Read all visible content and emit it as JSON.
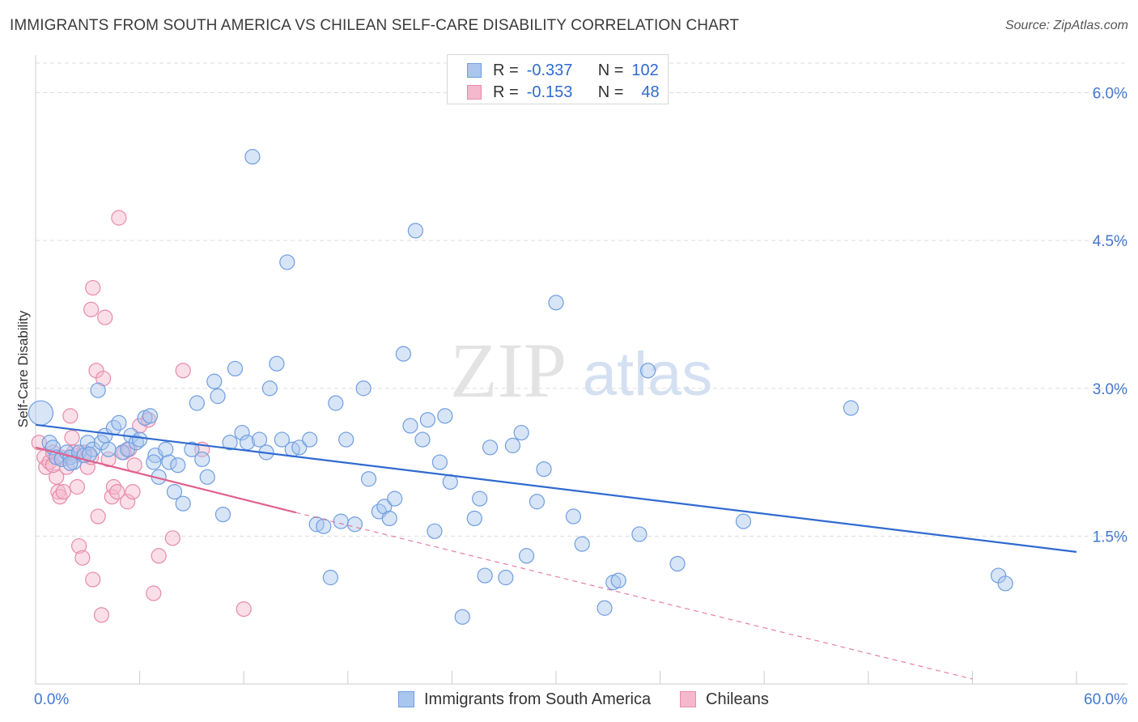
{
  "header": {
    "title": "IMMIGRANTS FROM SOUTH AMERICA VS CHILEAN SELF-CARE DISABILITY CORRELATION CHART",
    "source": "Source: ZipAtlas.com"
  },
  "watermark": {
    "zip": "ZIP",
    "atlas": "atlas"
  },
  "stats_legend": {
    "rows": [
      {
        "r_label": "R =",
        "r_value": "-0.337",
        "n_label": "N =",
        "n_value": "102"
      },
      {
        "r_label": "R =",
        "r_value": "-0.153",
        "n_label": "N =",
        "n_value": "48"
      }
    ]
  },
  "legend": {
    "items": [
      {
        "label": "Immigrants from South America"
      },
      {
        "label": "Chileans"
      }
    ]
  },
  "colors": {
    "blue_fill": "#a9c6ee",
    "blue_stroke": "#6f9ee0",
    "blue_line": "#2f6ad0",
    "pink_fill": "#f5b8cc",
    "pink_stroke": "#e88aa9",
    "pink_line": "#e0608e",
    "grid": "#dddddd",
    "tick_text": "#4477cc"
  },
  "chart_data": {
    "type": "scatter",
    "title": "IMMIGRANTS FROM SOUTH AMERICA VS CHILEAN SELF-CARE DISABILITY CORRELATION CHART",
    "xlabel": "",
    "ylabel": "Self-Care Disability",
    "xlim": [
      0,
      60
    ],
    "ylim": [
      0,
      6.3
    ],
    "x_tick_labels": [
      "0.0%",
      "60.0%"
    ],
    "y_ticks": [
      1.5,
      3.0,
      4.5,
      6.0
    ],
    "y_tick_labels": [
      "1.5%",
      "3.0%",
      "4.5%",
      "6.0%"
    ],
    "grid": true,
    "series": [
      {
        "name": "Immigrants from South America",
        "r": -0.337,
        "n": 102,
        "trend": {
          "x0": 0,
          "y0": 2.63,
          "x1": 60,
          "y1": 1.34
        },
        "points": [
          [
            0.3,
            2.75
          ],
          [
            0.8,
            2.45
          ],
          [
            1.0,
            2.4
          ],
          [
            1.2,
            2.3
          ],
          [
            1.5,
            2.28
          ],
          [
            1.8,
            2.35
          ],
          [
            2.0,
            2.3
          ],
          [
            2.2,
            2.25
          ],
          [
            2.5,
            2.35
          ],
          [
            2.8,
            2.32
          ],
          [
            3.0,
            2.45
          ],
          [
            3.3,
            2.38
          ],
          [
            3.6,
            2.98
          ],
          [
            3.8,
            2.45
          ],
          [
            4.0,
            2.52
          ],
          [
            4.2,
            2.38
          ],
          [
            4.5,
            2.6
          ],
          [
            4.8,
            2.65
          ],
          [
            5.0,
            2.35
          ],
          [
            5.3,
            2.38
          ],
          [
            5.5,
            2.52
          ],
          [
            5.8,
            2.45
          ],
          [
            6.0,
            2.48
          ],
          [
            6.3,
            2.7
          ],
          [
            6.6,
            2.72
          ],
          [
            6.9,
            2.32
          ],
          [
            7.1,
            2.1
          ],
          [
            7.5,
            2.38
          ],
          [
            7.7,
            2.25
          ],
          [
            8.0,
            1.95
          ],
          [
            8.2,
            2.22
          ],
          [
            8.5,
            1.83
          ],
          [
            9.0,
            2.38
          ],
          [
            9.3,
            2.85
          ],
          [
            9.6,
            2.28
          ],
          [
            9.9,
            2.1
          ],
          [
            10.3,
            3.07
          ],
          [
            10.5,
            2.92
          ],
          [
            10.8,
            1.72
          ],
          [
            11.2,
            2.45
          ],
          [
            11.5,
            3.2
          ],
          [
            11.9,
            2.55
          ],
          [
            12.2,
            2.45
          ],
          [
            12.5,
            5.35
          ],
          [
            12.9,
            2.48
          ],
          [
            13.3,
            2.35
          ],
          [
            13.5,
            3.0
          ],
          [
            13.9,
            3.25
          ],
          [
            14.2,
            2.48
          ],
          [
            14.5,
            4.28
          ],
          [
            14.8,
            2.38
          ],
          [
            15.2,
            2.4
          ],
          [
            15.8,
            2.48
          ],
          [
            16.2,
            1.62
          ],
          [
            16.6,
            1.6
          ],
          [
            17.0,
            1.08
          ],
          [
            17.3,
            2.85
          ],
          [
            17.6,
            1.65
          ],
          [
            17.9,
            2.48
          ],
          [
            18.4,
            1.62
          ],
          [
            18.9,
            3.0
          ],
          [
            19.2,
            2.08
          ],
          [
            19.8,
            1.75
          ],
          [
            20.1,
            1.8
          ],
          [
            20.4,
            1.68
          ],
          [
            20.7,
            1.88
          ],
          [
            21.2,
            3.35
          ],
          [
            21.6,
            2.62
          ],
          [
            21.9,
            4.6
          ],
          [
            22.3,
            2.48
          ],
          [
            22.6,
            2.68
          ],
          [
            23.0,
            1.55
          ],
          [
            23.3,
            2.25
          ],
          [
            23.6,
            2.72
          ],
          [
            23.9,
            2.05
          ],
          [
            24.6,
            0.68
          ],
          [
            25.3,
            1.68
          ],
          [
            25.6,
            1.88
          ],
          [
            25.9,
            1.1
          ],
          [
            26.2,
            2.4
          ],
          [
            27.1,
            1.08
          ],
          [
            27.5,
            2.42
          ],
          [
            28.0,
            2.55
          ],
          [
            28.3,
            1.3
          ],
          [
            28.9,
            1.85
          ],
          [
            29.3,
            2.18
          ],
          [
            30.0,
            3.87
          ],
          [
            31.0,
            1.7
          ],
          [
            31.5,
            1.42
          ],
          [
            32.8,
            0.77
          ],
          [
            33.3,
            1.03
          ],
          [
            33.6,
            1.05
          ],
          [
            34.8,
            1.52
          ],
          [
            35.3,
            3.18
          ],
          [
            37.0,
            1.22
          ],
          [
            40.8,
            1.65
          ],
          [
            47.0,
            2.8
          ],
          [
            55.5,
            1.1
          ],
          [
            55.9,
            1.02
          ],
          [
            2.0,
            2.24
          ],
          [
            6.8,
            2.25
          ],
          [
            3.1,
            2.33
          ]
        ]
      },
      {
        "name": "Chileans",
        "r": -0.153,
        "n": 48,
        "trend": {
          "x0": 0,
          "y0": 2.4,
          "x1": 15.0,
          "y1": 1.74
        },
        "trend_dashed": {
          "x0": 15.0,
          "y0": 1.74,
          "x1": 54.0,
          "y1": 0.05
        },
        "points": [
          [
            0.2,
            2.45
          ],
          [
            0.5,
            2.3
          ],
          [
            0.6,
            2.2
          ],
          [
            0.8,
            2.25
          ],
          [
            1.0,
            2.35
          ],
          [
            1.2,
            2.1
          ],
          [
            1.3,
            1.95
          ],
          [
            1.4,
            1.9
          ],
          [
            1.5,
            2.3
          ],
          [
            1.6,
            1.95
          ],
          [
            1.8,
            2.2
          ],
          [
            2.0,
            2.72
          ],
          [
            2.1,
            2.5
          ],
          [
            2.3,
            2.32
          ],
          [
            2.4,
            2.0
          ],
          [
            2.5,
            1.4
          ],
          [
            2.7,
            1.28
          ],
          [
            2.8,
            2.35
          ],
          [
            3.0,
            2.2
          ],
          [
            3.2,
            2.3
          ],
          [
            3.3,
            4.02
          ],
          [
            3.2,
            3.8
          ],
          [
            3.3,
            1.06
          ],
          [
            3.5,
            3.18
          ],
          [
            3.6,
            1.7
          ],
          [
            3.8,
            0.7
          ],
          [
            3.9,
            3.1
          ],
          [
            4.0,
            3.72
          ],
          [
            4.2,
            2.28
          ],
          [
            4.4,
            1.9
          ],
          [
            4.5,
            2.0
          ],
          [
            4.7,
            1.95
          ],
          [
            4.8,
            4.73
          ],
          [
            5.1,
            2.35
          ],
          [
            5.3,
            1.85
          ],
          [
            5.4,
            2.38
          ],
          [
            5.6,
            1.95
          ],
          [
            5.7,
            2.22
          ],
          [
            6.0,
            2.62
          ],
          [
            6.5,
            2.68
          ],
          [
            6.8,
            0.92
          ],
          [
            7.1,
            1.3
          ],
          [
            7.9,
            1.48
          ],
          [
            8.5,
            3.18
          ],
          [
            9.6,
            2.38
          ],
          [
            12.0,
            0.76
          ],
          [
            1.0,
            2.22
          ],
          [
            2.2,
            2.35
          ]
        ]
      }
    ]
  }
}
